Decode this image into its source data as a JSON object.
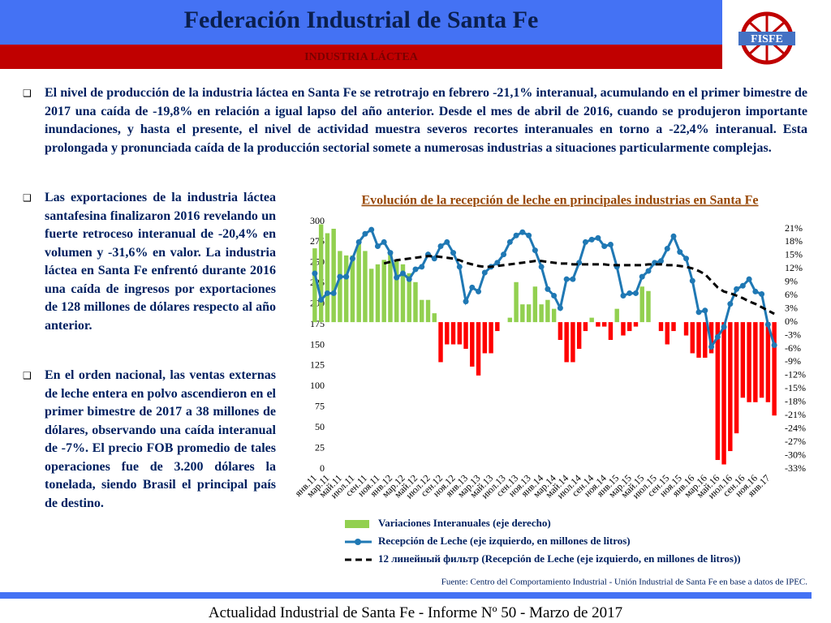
{
  "header": {
    "title": "Federación Industrial de Santa Fe",
    "subtitle": "INDUSTRIA LÁCTEA",
    "logo": "FISFE"
  },
  "intro": "El nivel de producción de la industria láctea en Santa Fe se retrotrajo en febrero -21,1% interanual, acumulando en el primer bimestre de 2017 una caída de -19,8% en relación a igual lapso del año anterior. Desde el mes de abril de 2016, cuando se produjeron importante inundaciones, y hasta el presente, el nivel de actividad muestra severos recortes interanuales en torno a -22,4% interanual. Esta prolongada y pronunciada caída de la producción sectorial somete a numerosas industrias a situaciones particularmente complejas.",
  "bullets": [
    "Las exportaciones de la industria láctea santafesina finalizaron 2016 revelando un fuerte retroceso interanual de -20,4% en volumen y -31,6% en valor. La industria láctea en Santa Fe enfrentó durante 2016 una caída de ingresos por exportaciones de 128 millones de dólares respecto al año anterior.",
    "En el orden nacional, las ventas externas de leche entera en polvo ascendieron en el primer bimestre de 2017 a 38 millones de dólares, observando una caída interanual de -7%. El precio FOB promedio de tales operaciones fue de 3.200 dólares la tonelada, siendo Brasil el principal país de destino."
  ],
  "chart_data": {
    "type": "bar-line",
    "title": "Evolución de la recepción de leche  en principales industrias en Santa Fe",
    "source": "Fuente: Centro del Comportamiento Industrial - Unión Industrial de Santa Fe en base a datos de IPEC.",
    "categories": [
      "янв.11",
      null,
      "мар.11",
      null,
      "май.11",
      null,
      "июл.11",
      null,
      "сен.11",
      null,
      "ноя.11",
      null,
      "янв.12",
      null,
      "мар.12",
      null,
      "май.12",
      null,
      "июл.12",
      null,
      "сен.12",
      null,
      "ноя.12",
      null,
      "янв.13",
      null,
      "мар.13",
      null,
      "май.13",
      null,
      "июл.13",
      null,
      "сен.13",
      null,
      "ноя.13",
      null,
      "янв.14",
      null,
      "мар.14",
      null,
      "май.14",
      null,
      "июл.14",
      null,
      "сен.14",
      null,
      "ноя.14",
      null,
      "янв.15",
      null,
      "мар.15",
      null,
      "май.15",
      null,
      "июл.15",
      null,
      "сен.15",
      null,
      "ноя.15",
      null,
      "янв.16",
      null,
      "мар.16",
      null,
      "май.16",
      null,
      "июл.16",
      null,
      "сен.16",
      null,
      "ноя.16",
      null,
      "янв.17",
      null
    ],
    "ylim": [
      0,
      300
    ],
    "yticks": [
      0,
      25,
      50,
      75,
      100,
      125,
      150,
      175,
      200,
      225,
      250,
      275,
      300
    ],
    "y2lim": [
      -33,
      21
    ],
    "y2ticks": [
      {
        "value": 21,
        "label": "21%"
      },
      {
        "value": 18,
        "label": "18%"
      },
      {
        "value": 15,
        "label": "15%"
      },
      {
        "value": 12,
        "label": "12%"
      },
      {
        "value": 9,
        "label": "9%"
      },
      {
        "value": 6,
        "label": "6%"
      },
      {
        "value": 3,
        "label": "3%"
      },
      {
        "value": 0,
        "label": "0%"
      },
      {
        "value": -3,
        "label": "-3%"
      },
      {
        "value": -6,
        "label": "-6%"
      },
      {
        "value": -9,
        "label": "-9%"
      },
      {
        "value": -12,
        "label": "-12%"
      },
      {
        "value": -15,
        "label": "-15%"
      },
      {
        "value": -18,
        "label": "-18%"
      },
      {
        "value": -21,
        "label": "-21%"
      },
      {
        "value": -24,
        "label": "-24%"
      },
      {
        "value": -27,
        "label": "-27%"
      },
      {
        "value": -30,
        "label": "-30%"
      },
      {
        "value": -33,
        "label": "-33%"
      }
    ],
    "series": [
      {
        "name": "Variaciones Interanuales (eje derecho)",
        "type": "bar",
        "axis": "y2",
        "color": "#92d050",
        "negative_color": "#ff0000",
        "values": [
          16.6,
          22,
          20,
          21,
          16,
          15,
          15,
          18,
          16,
          12,
          13,
          14,
          16,
          14,
          13,
          11,
          9,
          5,
          5,
          2,
          -9,
          -5,
          -5,
          -5,
          -6,
          -10,
          -12,
          -7,
          -7,
          -2,
          0,
          1,
          9,
          4,
          4,
          8,
          4,
          5,
          3,
          -4,
          -9,
          -9,
          -6,
          -2,
          1,
          -1,
          -1,
          -4,
          3,
          -3,
          -2,
          -1,
          8,
          7,
          0,
          -2,
          -5,
          -2,
          0,
          -3,
          -7,
          -8,
          -8,
          -7,
          -31,
          -32,
          -29,
          -25,
          -17,
          -18,
          -18,
          -17,
          -18,
          -21
        ]
      },
      {
        "name": "Recepción de Leche (eje izquierdo, en millones de litros)",
        "type": "line",
        "color": "#1f78b4",
        "values": [
          237,
          205,
          213,
          213,
          233,
          233,
          255,
          275,
          285,
          290,
          270,
          275,
          262,
          232,
          237,
          230,
          242,
          245,
          260,
          255,
          270,
          275,
          262,
          245,
          203,
          220,
          215,
          238,
          245,
          250,
          260,
          275,
          283,
          287,
          283,
          265,
          245,
          218,
          210,
          195,
          230,
          230,
          250,
          275,
          278,
          280,
          270,
          272,
          245,
          210,
          213,
          213,
          233,
          240,
          250,
          252,
          267,
          282,
          263,
          255,
          228,
          190,
          192,
          148,
          160,
          172,
          200,
          218,
          222,
          230,
          215,
          212,
          175,
          150
        ]
      },
      {
        "name": "12 линейный фильтр (Recepción de Leche (eje izquierdo, en millones de litros))",
        "type": "dashed",
        "color": "#000000",
        "values": [
          null,
          null,
          null,
          null,
          null,
          null,
          null,
          null,
          null,
          null,
          null,
          249,
          251,
          253,
          254,
          255,
          256,
          257,
          258,
          258,
          257,
          256,
          255,
          253,
          250,
          248,
          246,
          245,
          245,
          246,
          247,
          248,
          249,
          250,
          251,
          252,
          252,
          251,
          250,
          249,
          249,
          248,
          248,
          248,
          248,
          248,
          248,
          247,
          247,
          247,
          247,
          247,
          247,
          248,
          248,
          248,
          247,
          247,
          246,
          245,
          243,
          240,
          236,
          228,
          220,
          215,
          213,
          210,
          207,
          203,
          200,
          196,
          192,
          188
        ]
      }
    ]
  },
  "footer": "Actualidad Industrial de Santa Fe - Informe Nº 50 - Marzo de 2017"
}
